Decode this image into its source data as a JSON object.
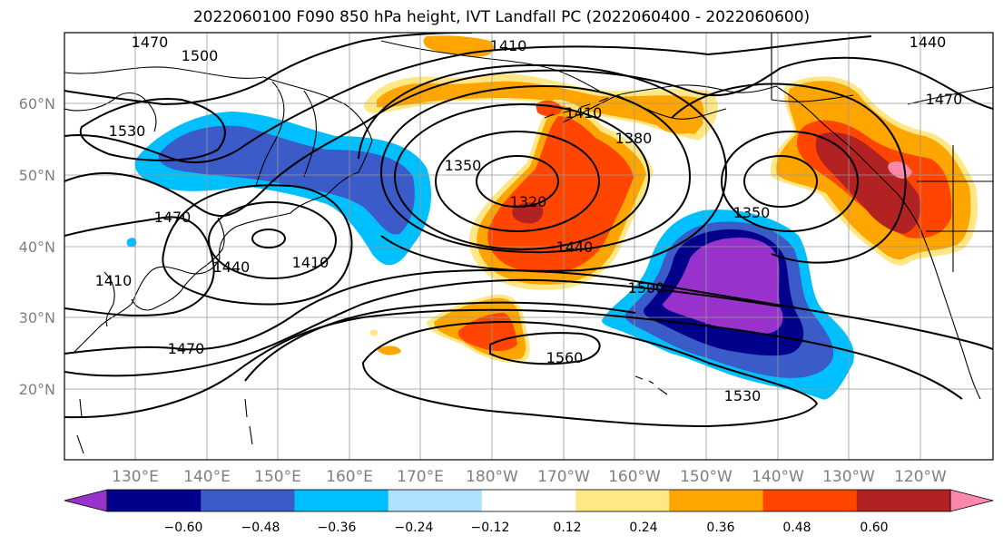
{
  "title": "2022060100 F090 850 hPa height, IVT Landfall PC (2022060400 - 2022060600)",
  "lat_labels": [
    "60°N",
    "50°N",
    "40°N",
    "30°N",
    "20°N"
  ],
  "lon_labels": [
    "130°E",
    "140°E",
    "150°E",
    "160°E",
    "170°E",
    "180°W",
    "170°W",
    "160°W",
    "150°W",
    "140°W",
    "130°W",
    "120°W"
  ],
  "colorbar": {
    "colors": [
      "#9932cc",
      "#00008b",
      "#3a5bc8",
      "#00bfff",
      "#b0e2ff",
      "#ffffff",
      "#ffe785",
      "#ffa500",
      "#ff4500",
      "#b22222",
      "#ff88aa"
    ],
    "tick_labels": [
      "−0.60",
      "−0.48",
      "−0.36",
      "−0.24",
      "−0.12",
      "0.12",
      "0.24",
      "0.36",
      "0.48",
      "0.60"
    ]
  },
  "contour_labels": [
    "1470",
    "1500",
    "1530",
    "1410",
    "1440",
    "1470",
    "1410",
    "1440",
    "1350",
    "1320",
    "1380",
    "1410",
    "1440",
    "1350",
    "1500",
    "1470",
    "1560",
    "1530",
    "1470",
    "1410"
  ]
}
